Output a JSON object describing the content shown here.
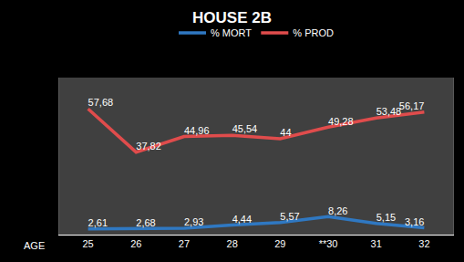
{
  "chart_data": {
    "type": "line",
    "title": "HOUSE 2B",
    "x_label": "AGE",
    "categories": [
      "25",
      "26",
      "27",
      "28",
      "29",
      "**30",
      "31",
      "32"
    ],
    "series": [
      {
        "name": "% MORT",
        "color": "#2f78c2",
        "values": [
          2.61,
          2.68,
          2.93,
          4.44,
          5.57,
          8.26,
          5.15,
          3.16
        ],
        "value_labels": [
          "2,61",
          "2,68",
          "2,93",
          "4,44",
          "5,57",
          "8,26",
          "5,15",
          "3,16"
        ]
      },
      {
        "name": "% PROD",
        "color": "#e04c4c",
        "values": [
          57.68,
          37.82,
          44.96,
          45.54,
          44,
          49.28,
          53.48,
          56.17
        ],
        "value_labels": [
          "57,68",
          "37,82",
          "44,96",
          "45,54",
          "44",
          "49,28",
          "53,48",
          "56,17"
        ]
      }
    ],
    "ylim": [
      0,
      72
    ],
    "grid": false,
    "legend": "top",
    "data_labels": true,
    "tick_labels": "x",
    "marker": "none",
    "line_style": "solid"
  }
}
